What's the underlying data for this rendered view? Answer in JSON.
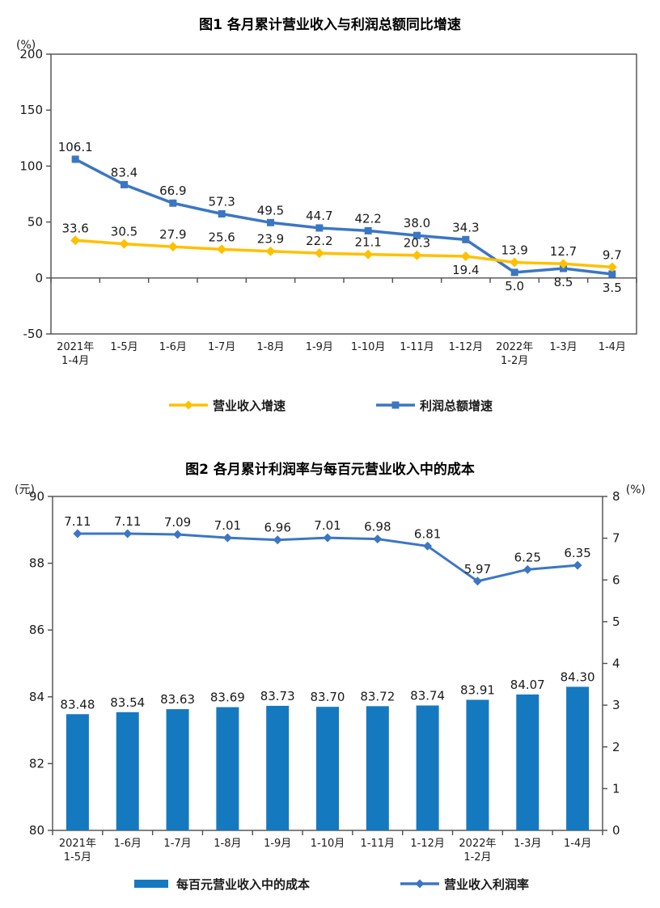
{
  "page": {
    "background": "#ffffff"
  },
  "colors": {
    "revenue_line": "#FFC000",
    "profit_line": "#3B76C4",
    "cost_bar": "#1579C0",
    "margin_line": "#3B76C4",
    "axis": "#4d4d4d",
    "text": "#1a1a1a"
  },
  "chart_data": [
    {
      "type": "line",
      "title": "图1 各月累计营业收入与利润总额同比增速",
      "y_unit": "(%)",
      "ylim": [
        -50,
        200
      ],
      "yticks": [
        200,
        150,
        100,
        50,
        0,
        -50
      ],
      "grid": false,
      "legend_position": "bottom",
      "categories": [
        [
          "2021年",
          "1-4月"
        ],
        [
          "1-5月"
        ],
        [
          "1-6月"
        ],
        [
          "1-7月"
        ],
        [
          "1-8月"
        ],
        [
          "1-9月"
        ],
        [
          "1-10月"
        ],
        [
          "1-11月"
        ],
        [
          "1-12月"
        ],
        [
          "2022年",
          "1-2月"
        ],
        [
          "1-3月"
        ],
        [
          "1-4月"
        ]
      ],
      "series": [
        {
          "name": "营业收入增速",
          "color_key": "revenue_line",
          "marker": "diamond",
          "decimals": 1,
          "values": [
            33.6,
            30.5,
            27.9,
            25.6,
            23.9,
            22.2,
            21.1,
            20.3,
            19.4,
            13.9,
            12.7,
            9.7
          ],
          "label_side": [
            "above",
            "above",
            "above",
            "above",
            "above",
            "above",
            "above",
            "above",
            "below",
            "above",
            "above",
            "above"
          ]
        },
        {
          "name": "利润总额增速",
          "color_key": "profit_line",
          "marker": "square",
          "decimals": 1,
          "values": [
            106.1,
            83.4,
            66.9,
            57.3,
            49.5,
            44.7,
            42.2,
            38.0,
            34.3,
            5.0,
            8.5,
            3.5
          ],
          "label_side": [
            "above",
            "above",
            "above",
            "above",
            "above",
            "above",
            "above",
            "above",
            "above",
            "below",
            "below",
            "below"
          ]
        }
      ]
    },
    {
      "type": "bar+line",
      "title": "图2 各月累计利润率与每百元营业收入中的成本",
      "left_unit": "(元)",
      "right_unit": "(%)",
      "left_ylim": [
        80,
        90
      ],
      "left_yticks": [
        90,
        88,
        86,
        84,
        82,
        80
      ],
      "right_ylim": [
        0,
        8
      ],
      "right_yticks": [
        8,
        7,
        6,
        5,
        4,
        3,
        2,
        1,
        0
      ],
      "grid": false,
      "legend_position": "bottom",
      "categories": [
        [
          "2021年",
          "1-5月"
        ],
        [
          "1-6月"
        ],
        [
          "1-7月"
        ],
        [
          "1-8月"
        ],
        [
          "1-9月"
        ],
        [
          "1-10月"
        ],
        [
          "1-11月"
        ],
        [
          "1-12月"
        ],
        [
          "2022年",
          "1-2月"
        ],
        [
          "1-3月"
        ],
        [
          "1-4月"
        ]
      ],
      "bar_series": {
        "name": "每百元营业收入中的成本",
        "color_key": "cost_bar",
        "axis": "left",
        "decimals": 2,
        "values": [
          83.48,
          83.54,
          83.63,
          83.69,
          83.73,
          83.7,
          83.72,
          83.74,
          83.91,
          84.07,
          84.3
        ]
      },
      "line_series": {
        "name": "营业收入利润率",
        "color_key": "margin_line",
        "axis": "right",
        "marker": "diamond",
        "decimals": 2,
        "values": [
          7.11,
          7.11,
          7.09,
          7.01,
          6.96,
          7.01,
          6.98,
          6.81,
          5.97,
          6.25,
          6.35
        ]
      }
    }
  ]
}
